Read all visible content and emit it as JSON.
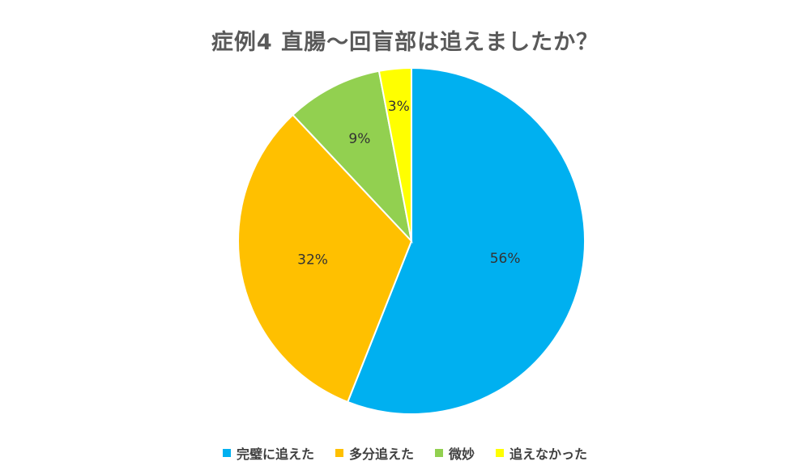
{
  "chart_data": {
    "type": "pie",
    "title": "症例4 直腸〜回盲部は追えましたか？",
    "labels": [
      "完璧に追えた",
      "多分追えた",
      "微妙",
      "追えなかった"
    ],
    "values": [
      56,
      32,
      9,
      3
    ],
    "value_labels": [
      "56%",
      "32%",
      "9%",
      "3%"
    ],
    "colors": [
      "#00B0F0",
      "#FFC000",
      "#92D050",
      "#FFFF00"
    ],
    "legend_position": "bottom",
    "start_angle": "12 o'clock",
    "direction": "clockwise"
  }
}
